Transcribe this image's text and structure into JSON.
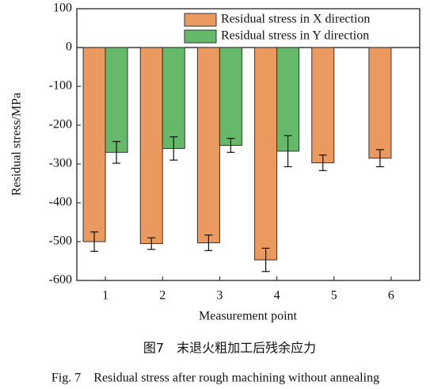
{
  "chart_data": {
    "type": "bar",
    "y_label": "Residual stress/MPa",
    "x_label": "Measurement point",
    "caption_cn": "图7　末退火粗加工后残余应力",
    "caption_en": "Fig. 7　Residual stress after rough machining without annealing",
    "categories": [
      "1",
      "2",
      "3",
      "4",
      "5",
      "6"
    ],
    "series": [
      {
        "name": "Residual stress in X direction",
        "color": "#eb9a5f",
        "values": [
          -500,
          -505,
          -503,
          -547,
          -297,
          -285
        ],
        "errors": [
          25,
          15,
          20,
          30,
          20,
          22
        ]
      },
      {
        "name": "Residual stress in Y direction",
        "color": "#66b96a",
        "values": [
          -270,
          -260,
          -252,
          -267,
          null,
          null
        ],
        "errors": [
          28,
          30,
          18,
          40,
          null,
          null
        ]
      }
    ],
    "ylim": [
      -600,
      100
    ],
    "yticks": [
      100,
      0,
      -100,
      -200,
      -300,
      -400,
      -500,
      -600
    ],
    "legend": "upper right"
  }
}
